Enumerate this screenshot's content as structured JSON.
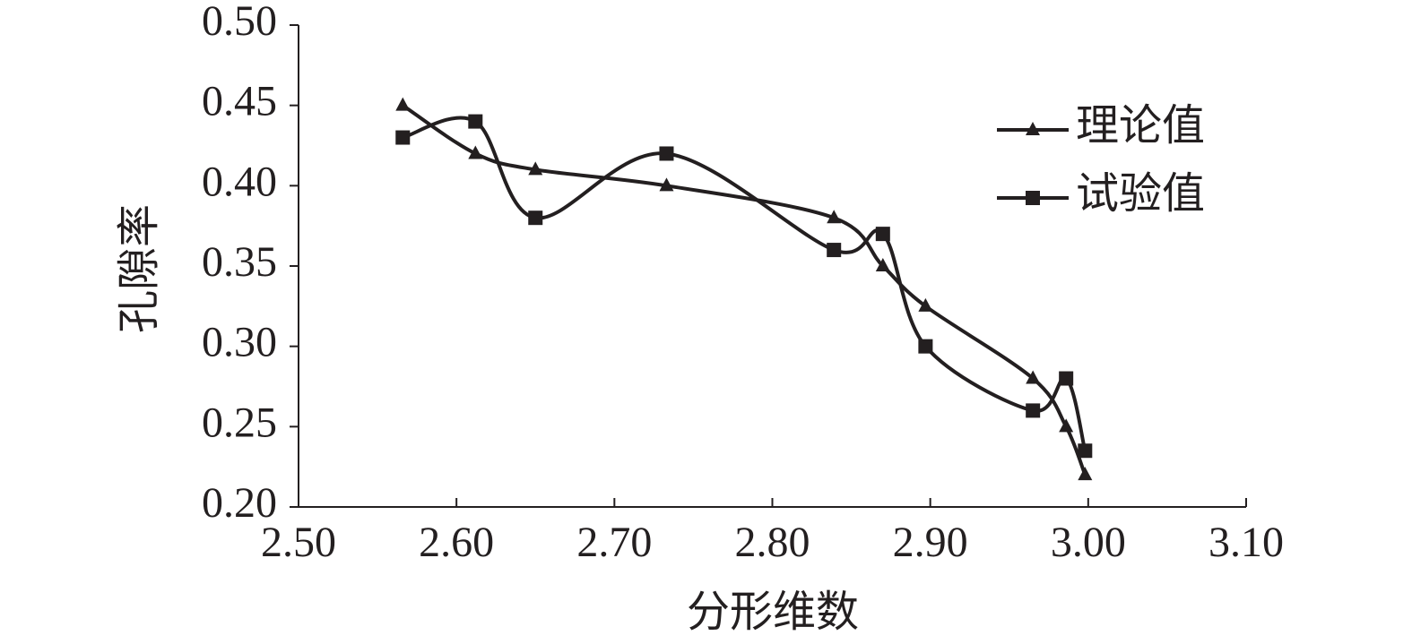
{
  "chart_data": {
    "type": "line",
    "smooth": true,
    "xlabel": "分形维数",
    "ylabel": "孔隙率",
    "x": [
      2.566,
      2.612,
      2.65,
      2.733,
      2.839,
      2.87,
      2.897,
      2.965,
      2.986,
      2.998
    ],
    "series": [
      {
        "name": "理论值",
        "color": "#231f20",
        "marker": "triangle",
        "values": [
          0.45,
          0.42,
          0.41,
          0.4,
          0.38,
          0.35,
          0.325,
          0.28,
          0.25,
          0.22
        ]
      },
      {
        "name": "试验值",
        "color": "#231f20",
        "marker": "square",
        "values": [
          0.43,
          0.44,
          0.38,
          0.42,
          0.36,
          0.37,
          0.3,
          0.26,
          0.28,
          0.235
        ]
      }
    ],
    "xlim": [
      2.5,
      3.1
    ],
    "xticks": [
      {
        "value": 2.5,
        "label": "2.50"
      },
      {
        "value": 2.6,
        "label": "2.60"
      },
      {
        "value": 2.7,
        "label": "2.70"
      },
      {
        "value": 2.8,
        "label": "2.80"
      },
      {
        "value": 2.9,
        "label": "2.90"
      },
      {
        "value": 3.0,
        "label": "3.00"
      },
      {
        "value": 3.1,
        "label": "3.10"
      }
    ],
    "ylim": [
      0.2,
      0.5
    ],
    "yticks": [
      {
        "value": 0.2,
        "label": "0.20"
      },
      {
        "value": 0.25,
        "label": "0.25"
      },
      {
        "value": 0.3,
        "label": "0.30"
      },
      {
        "value": 0.35,
        "label": "0.35"
      },
      {
        "value": 0.4,
        "label": "0.40"
      },
      {
        "value": 0.45,
        "label": "0.45"
      },
      {
        "value": 0.5,
        "label": "0.50"
      }
    ],
    "grid": false,
    "legend": "upper right"
  }
}
